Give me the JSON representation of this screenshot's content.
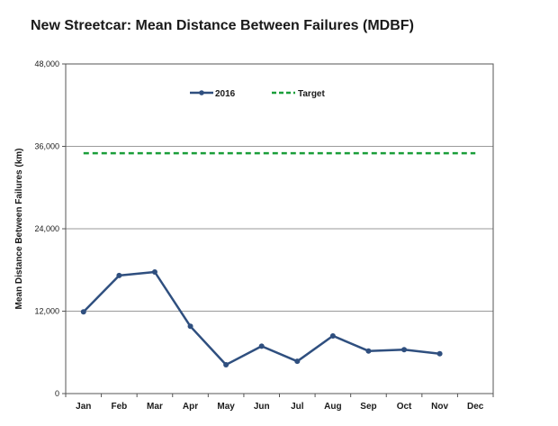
{
  "chart_data": {
    "type": "line",
    "title": "New Streetcar: Mean Distance Between Failures (MDBF)",
    "xlabel": "",
    "ylabel": "Mean Distance Between Failures (km)",
    "categories": [
      "Jan",
      "Feb",
      "Mar",
      "Apr",
      "May",
      "Jun",
      "Jul",
      "Aug",
      "Sep",
      "Oct",
      "Nov",
      "Dec"
    ],
    "ylim": [
      0,
      48000
    ],
    "yticks": [
      0,
      12000,
      24000,
      36000,
      48000
    ],
    "ytick_labels": [
      "0",
      "12,000",
      "24,000",
      "36,000",
      "48,000"
    ],
    "grid": true,
    "legend_position": "top-center",
    "series": [
      {
        "name": "2016",
        "style": "solid-with-markers",
        "color": "#2f4f7f",
        "values": [
          11900,
          17200,
          17700,
          9800,
          4200,
          6900,
          4700,
          8400,
          6200,
          6400,
          5800,
          null
        ]
      },
      {
        "name": "Target",
        "style": "dashed",
        "color": "#1a9e3a",
        "values": [
          35000,
          35000,
          35000,
          35000,
          35000,
          35000,
          35000,
          35000,
          35000,
          35000,
          35000,
          35000
        ]
      }
    ]
  }
}
